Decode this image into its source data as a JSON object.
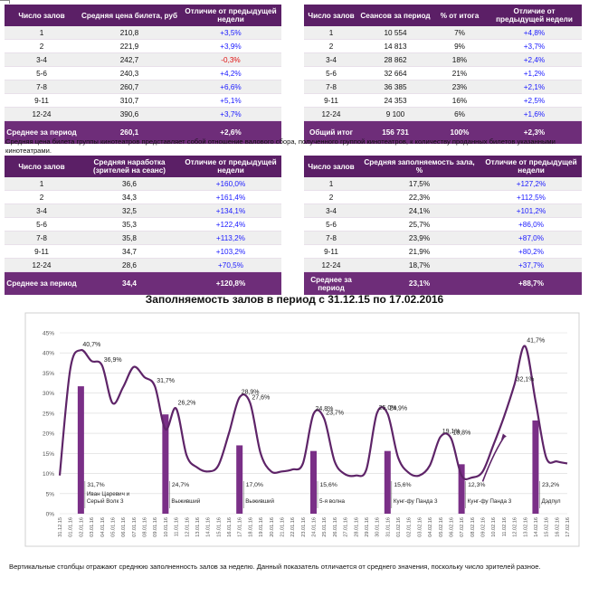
{
  "table1": {
    "headers": [
      "Число залов",
      "Средняя цена билета, руб",
      "Отличие от предыдущей недели"
    ],
    "rows": [
      [
        "1",
        "210,8",
        "+3,5%"
      ],
      [
        "2",
        "221,9",
        "+3,9%"
      ],
      [
        "3-4",
        "242,7",
        "-0,3%"
      ],
      [
        "5-6",
        "240,3",
        "+4,2%"
      ],
      [
        "7-8",
        "260,7",
        "+6,6%"
      ],
      [
        "9-11",
        "310,7",
        "+5,1%"
      ],
      [
        "12-24",
        "390,6",
        "+3,7%"
      ]
    ],
    "footer": [
      "Среднее за период",
      "260,1",
      "+2,6%"
    ]
  },
  "table2": {
    "headers": [
      "Число залов",
      "Сеансов за период",
      "% от итога",
      "Отличие от предыдущей недели"
    ],
    "rows": [
      [
        "1",
        "10 554",
        "7%",
        "+4,8%"
      ],
      [
        "2",
        "14 813",
        "9%",
        "+3,7%"
      ],
      [
        "3-4",
        "28 862",
        "18%",
        "+2,4%"
      ],
      [
        "5-6",
        "32 664",
        "21%",
        "+1,2%"
      ],
      [
        "7-8",
        "36 385",
        "23%",
        "+2,1%"
      ],
      [
        "9-11",
        "24 353",
        "16%",
        "+2,5%"
      ],
      [
        "12-24",
        "9 100",
        "6%",
        "+1,6%"
      ]
    ],
    "footer": [
      "Общий итог",
      "156 731",
      "100%",
      "+2,3%"
    ]
  },
  "note1": "Средняя цена билета группы кинотеатров представляет собой отношение валового сбора, полученного группой кинотеатров, к количеству проданных билетов указанными кинотеатрами.",
  "table3": {
    "headers": [
      "Число залов",
      "Средняя наработка (зрителей на сеанс)",
      "Отличие от предыдущей недели"
    ],
    "rows": [
      [
        "1",
        "36,6",
        "+160,0%"
      ],
      [
        "2",
        "34,3",
        "+161,4%"
      ],
      [
        "3-4",
        "32,5",
        "+134,1%"
      ],
      [
        "5-6",
        "35,3",
        "+122,4%"
      ],
      [
        "7-8",
        "35,8",
        "+113,2%"
      ],
      [
        "9-11",
        "34,7",
        "+103,2%"
      ],
      [
        "12-24",
        "28,6",
        "+70,5%"
      ]
    ],
    "footer": [
      "Среднее за период",
      "34,4",
      "+120,8%"
    ]
  },
  "table4": {
    "headers": [
      "Число залов",
      "Средняя заполняемость зала, %",
      "Отличие от предыдущей недели"
    ],
    "rows": [
      [
        "1",
        "17,5%",
        "+127,2%"
      ],
      [
        "2",
        "22,3%",
        "+112,5%"
      ],
      [
        "3-4",
        "24,1%",
        "+101,2%"
      ],
      [
        "5-6",
        "25,7%",
        "+86,0%"
      ],
      [
        "7-8",
        "23,9%",
        "+87,0%"
      ],
      [
        "9-11",
        "21,9%",
        "+80,2%"
      ],
      [
        "12-24",
        "18,7%",
        "+37,7%"
      ]
    ],
    "footer": [
      "Среднее за период",
      "23,1%",
      "+88,7%"
    ]
  },
  "chart_title": "Заполняемость залов в период с 31.12.15 по 17.02.2016",
  "note2": "Вертикальные столбцы отражают среднюю заполненность залов за неделю. Данный показатель отличается от среднего значения, поскольку число зрителей разное.",
  "colors": {
    "header": "#5b1f66",
    "footer": "#6e2d79",
    "line": "#5e2468",
    "bar": "#7a2f87",
    "positive": "#1a1aff",
    "negative": "#e01010"
  },
  "chart_data": {
    "type": "line",
    "title": "Заполняемость залов в период с 31.12.15 по 17.02.2016",
    "x": [
      "31.12.15",
      "01.01.16",
      "02.01.16",
      "03.01.16",
      "04.01.16",
      "05.01.16",
      "06.01.16",
      "07.01.16",
      "08.01.16",
      "09.01.16",
      "10.01.16",
      "11.01.16",
      "12.01.16",
      "13.01.16",
      "14.01.16",
      "15.01.16",
      "16.01.16",
      "17.01.16",
      "18.01.16",
      "19.01.16",
      "20.01.16",
      "21.01.16",
      "22.01.16",
      "23.01.16",
      "24.01.16",
      "25.01.16",
      "26.01.16",
      "27.01.16",
      "28.01.16",
      "29.01.16",
      "30.01.16",
      "31.01.16",
      "01.02.16",
      "02.01.16",
      "03.02.16",
      "04.02.16",
      "05.02.16",
      "06.02.16",
      "07.02.16",
      "08.02.16",
      "09.02.16",
      "10.02.16",
      "11.02.16",
      "12.02.16",
      "13.02.16",
      "14.02.16",
      "15.02.16",
      "16.02.16",
      "17.02.16"
    ],
    "yticks": [
      "0%",
      "5%",
      "10%",
      "15%",
      "20%",
      "25%",
      "30%",
      "35%",
      "40%",
      "45%"
    ],
    "ylim": [
      0,
      45
    ],
    "series": [
      {
        "name": "Заполняемость",
        "values": [
          9.5,
          36.0,
          40.7,
          38.0,
          36.9,
          27.5,
          31.5,
          36.5,
          34.0,
          31.7,
          21.0,
          26.2,
          14.5,
          11.5,
          10.5,
          12.0,
          20.0,
          28.9,
          27.6,
          15.0,
          10.5,
          10.5,
          11.0,
          12.5,
          24.8,
          23.7,
          13.0,
          9.8,
          9.5,
          11.0,
          25.0,
          24.9,
          14.0,
          10.2,
          9.5,
          12.0,
          19.1,
          18.8,
          9.5,
          9.0,
          10.5,
          17.0,
          24.0,
          32.1,
          41.7,
          28.0,
          14.0,
          13.0,
          12.5
        ]
      }
    ],
    "bars": [
      {
        "x_index": 2,
        "value": 31.7,
        "film": "Иван Царевич и Серый Волк 3"
      },
      {
        "x_index": 10,
        "value": 24.7,
        "film": "Выживший"
      },
      {
        "x_index": 17,
        "value": 17.0,
        "film": "Выживший"
      },
      {
        "x_index": 24,
        "value": 15.6,
        "film": "5-я волна"
      },
      {
        "x_index": 31,
        "value": 15.6,
        "film": "Кунг-фу Панда 3"
      },
      {
        "x_index": 38,
        "value": 12.3,
        "film": "Кунг-фу Панда 3"
      },
      {
        "x_index": 45,
        "value": 23.2,
        "film": "Дэдпул"
      }
    ],
    "point_labels": [
      {
        "x_index": 2,
        "text": "40,7%"
      },
      {
        "x_index": 4,
        "text": "36,9%"
      },
      {
        "x_index": 9,
        "text": "31,7%"
      },
      {
        "x_index": 11,
        "text": "26,2%"
      },
      {
        "x_index": 17,
        "text": "28,9%"
      },
      {
        "x_index": 18,
        "text": "27,6%"
      },
      {
        "x_index": 24,
        "text": "24,8%"
      },
      {
        "x_index": 25,
        "text": "23,7%"
      },
      {
        "x_index": 30,
        "text": "25,0%"
      },
      {
        "x_index": 31,
        "text": "24,9%"
      },
      {
        "x_index": 36,
        "text": "19,1%"
      },
      {
        "x_index": 37,
        "text": "18,8%"
      },
      {
        "x_index": 43,
        "text": "32,1%"
      },
      {
        "x_index": 44,
        "text": "41,7%"
      }
    ],
    "bar_labels": [
      {
        "x_index": 2,
        "text": "31,7%"
      },
      {
        "x_index": 10,
        "text": "24,7%"
      },
      {
        "x_index": 17,
        "text": "17,0%"
      },
      {
        "x_index": 24,
        "text": "15,6%"
      },
      {
        "x_index": 31,
        "text": "15,6%"
      },
      {
        "x_index": 38,
        "text": "12,3%"
      },
      {
        "x_index": 45,
        "text": "23,2%"
      }
    ]
  }
}
